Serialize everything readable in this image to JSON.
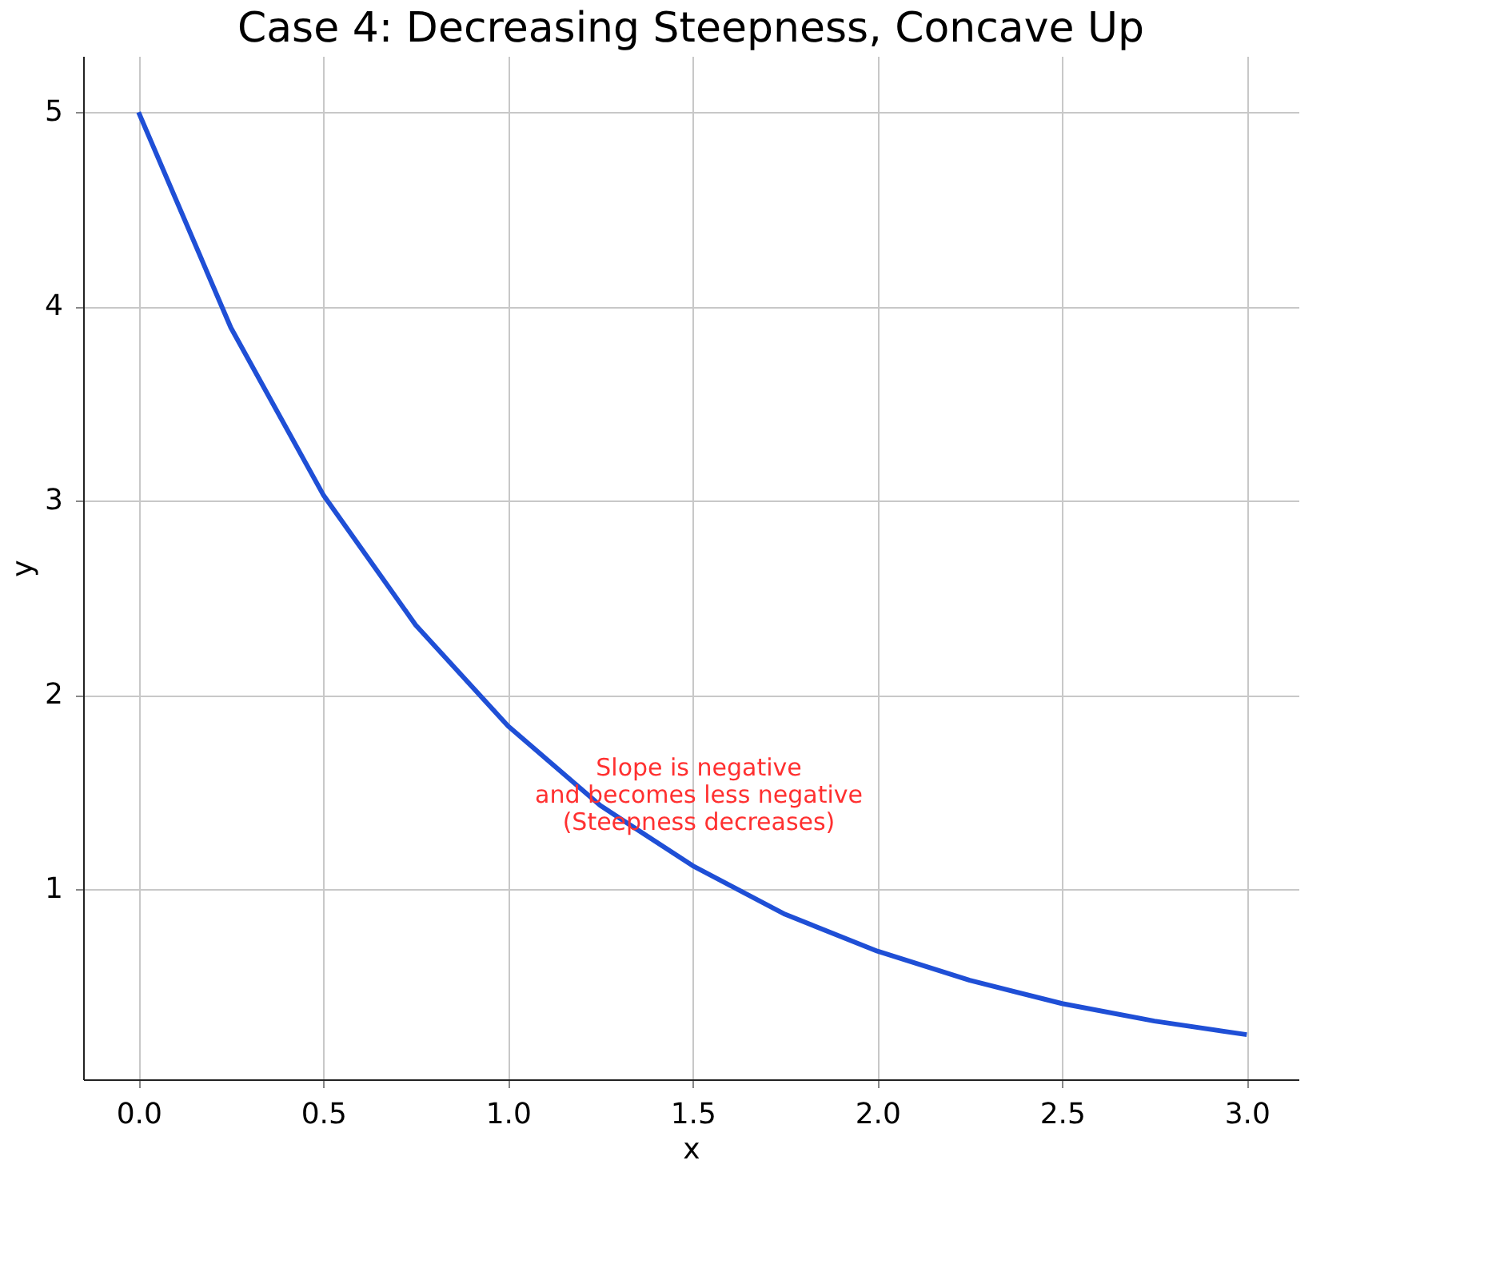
{
  "chart_data": {
    "type": "line",
    "title": "Case 4: Decreasing Steepness, Concave Up",
    "xlabel": "x",
    "ylabel": "y",
    "x": [
      0,
      0.25,
      0.5,
      0.75,
      1.0,
      1.25,
      1.5,
      1.75,
      2.0,
      2.25,
      2.5,
      2.75,
      3.0
    ],
    "series": [
      {
        "color": "#1f4fd6",
        "values": [
          5.0,
          3.89,
          3.03,
          2.36,
          1.84,
          1.43,
          1.12,
          0.87,
          0.68,
          0.53,
          0.41,
          0.32,
          0.25
        ]
      }
    ],
    "xlim": [
      -0.15,
      3.14
    ],
    "ylim": [
      0.02,
      5.29
    ],
    "xticks": [
      {
        "value": 0,
        "label": "0.0"
      },
      0.5,
      {
        "value": 1,
        "label": "1.0"
      },
      1.5,
      {
        "value": 2,
        "label": "2.0"
      },
      2.5,
      {
        "value": 3,
        "label": "3.0"
      }
    ],
    "yticks": [
      1,
      2,
      3,
      4,
      5
    ],
    "annotations": [
      "Slope is negative\nand becomes less negative\n(Steepness decreases)"
    ],
    "grid": true,
    "marker": "none",
    "line_style": "solid"
  }
}
